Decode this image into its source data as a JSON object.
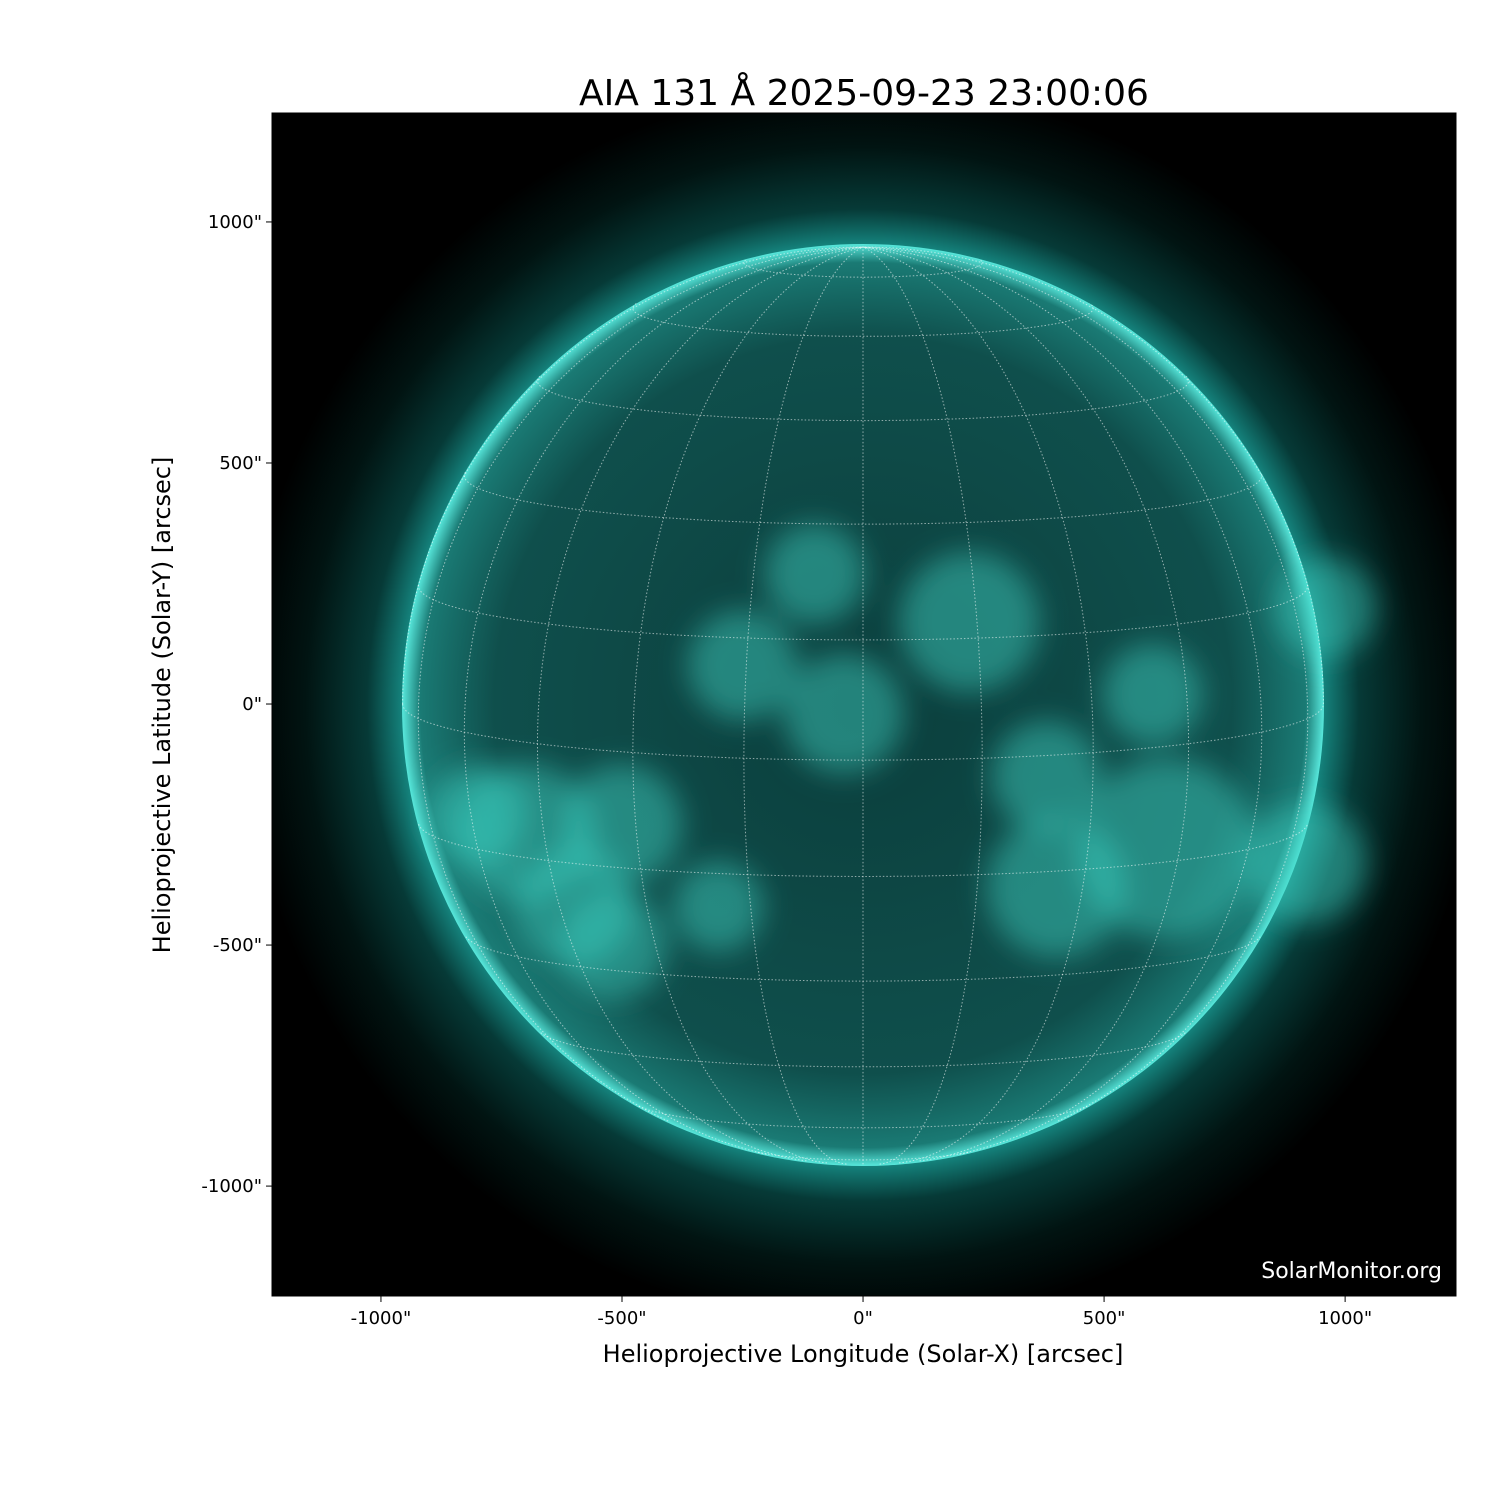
{
  "chart_data": {
    "type": "image",
    "title": "AIA 131 Å 2025-09-23 23:00:06",
    "xlabel": "Helioprojective Longitude (Solar-X) [arcsec]",
    "ylabel": "Helioprojective Latitude (Solar-Y) [arcsec]",
    "xlim": [
      -1226,
      1230
    ],
    "ylim": [
      -1228,
      1226
    ],
    "xticks": [
      -1000,
      -500,
      0,
      500,
      1000
    ],
    "yticks": [
      -1000,
      -500,
      0,
      500,
      1000
    ],
    "xtick_labels": [
      "-1000\"",
      "-500\"",
      "0\"",
      "500\"",
      "1000\""
    ],
    "ytick_labels": [
      "-1000\"",
      "-500\"",
      "0\"",
      "500\"",
      "1000\""
    ],
    "solar_radius_arcsec": 955,
    "heliographic_grid_spacing_deg": 15,
    "colormap": "sdoaia131",
    "colors": {
      "background": "#000000",
      "disk": "#0a4a48",
      "bright": "#6ffff0",
      "grid": "#ffffff"
    },
    "watermark": "SolarMonitor.org"
  }
}
